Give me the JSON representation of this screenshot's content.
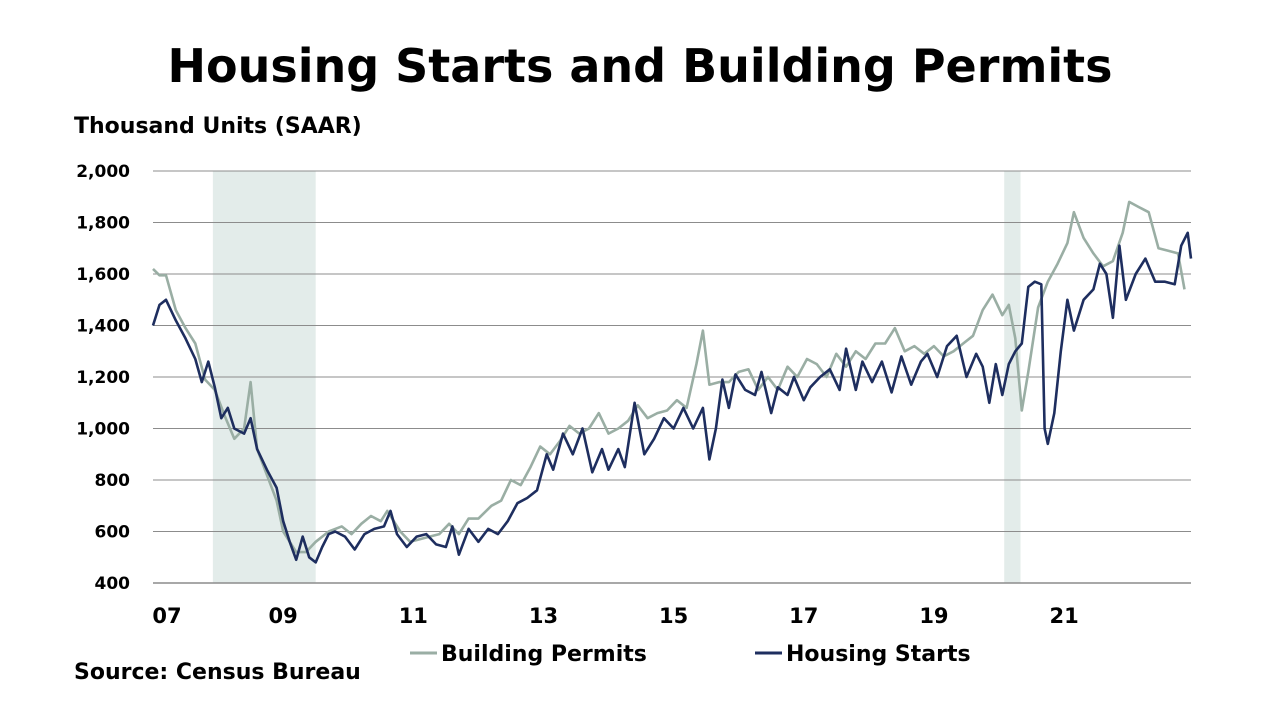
{
  "title": "Housing Starts and Building Permits",
  "ylabel": "Thousand Units (SAAR)",
  "source": "Source: Census Bureau",
  "colors": {
    "building_permits": "#9aaea4",
    "housing_starts": "#1e2e5f",
    "recession_shading": "#e3ecea",
    "grid": "#8c8c8c"
  },
  "chart_data": {
    "type": "line",
    "x_unit": "fractional year",
    "xlim": [
      2007.0,
      2022.95
    ],
    "ylim": [
      400,
      2000
    ],
    "yticks": [
      400,
      600,
      800,
      1000,
      1200,
      1400,
      1600,
      1800,
      2000
    ],
    "ytick_labels": [
      "400",
      "600",
      "800",
      "1,000",
      "1,200",
      "1,400",
      "1,600",
      "1,800",
      "2,000"
    ],
    "xticks": [
      2007,
      2009,
      2011,
      2013,
      2015,
      2017,
      2019,
      2021
    ],
    "xtick_labels": [
      "07",
      "09",
      "11",
      "13",
      "15",
      "17",
      "19",
      "21"
    ],
    "grid": "horizontal",
    "legend_position": "bottom",
    "recession_shading": [
      {
        "start": 2007.92,
        "end": 2009.5
      },
      {
        "start": 2020.08,
        "end": 2020.33
      }
    ],
    "series": [
      {
        "name": "Building Permits",
        "color": "#9aaea4",
        "points": [
          [
            2007.0,
            1620
          ],
          [
            2007.1,
            1595
          ],
          [
            2007.2,
            1595
          ],
          [
            2007.35,
            1460
          ],
          [
            2007.5,
            1390
          ],
          [
            2007.65,
            1330
          ],
          [
            2007.8,
            1190
          ],
          [
            2007.95,
            1150
          ],
          [
            2008.1,
            1050
          ],
          [
            2008.25,
            960
          ],
          [
            2008.4,
            1000
          ],
          [
            2008.5,
            1180
          ],
          [
            2008.6,
            920
          ],
          [
            2008.75,
            820
          ],
          [
            2008.9,
            720
          ],
          [
            2009.0,
            600
          ],
          [
            2009.2,
            520
          ],
          [
            2009.35,
            520
          ],
          [
            2009.5,
            560
          ],
          [
            2009.7,
            600
          ],
          [
            2009.9,
            620
          ],
          [
            2010.05,
            590
          ],
          [
            2010.2,
            630
          ],
          [
            2010.35,
            660
          ],
          [
            2010.5,
            640
          ],
          [
            2010.6,
            680
          ],
          [
            2010.8,
            600
          ],
          [
            2010.95,
            560
          ],
          [
            2011.1,
            570
          ],
          [
            2011.25,
            580
          ],
          [
            2011.4,
            590
          ],
          [
            2011.55,
            630
          ],
          [
            2011.7,
            590
          ],
          [
            2011.85,
            650
          ],
          [
            2012.0,
            650
          ],
          [
            2012.2,
            700
          ],
          [
            2012.35,
            720
          ],
          [
            2012.5,
            800
          ],
          [
            2012.65,
            780
          ],
          [
            2012.8,
            850
          ],
          [
            2012.95,
            930
          ],
          [
            2013.1,
            900
          ],
          [
            2013.25,
            950
          ],
          [
            2013.4,
            1010
          ],
          [
            2013.55,
            980
          ],
          [
            2013.7,
            1000
          ],
          [
            2013.85,
            1060
          ],
          [
            2014.0,
            980
          ],
          [
            2014.15,
            1000
          ],
          [
            2014.3,
            1030
          ],
          [
            2014.45,
            1090
          ],
          [
            2014.6,
            1040
          ],
          [
            2014.75,
            1060
          ],
          [
            2014.9,
            1070
          ],
          [
            2015.05,
            1110
          ],
          [
            2015.2,
            1080
          ],
          [
            2015.35,
            1250
          ],
          [
            2015.45,
            1380
          ],
          [
            2015.55,
            1170
          ],
          [
            2015.7,
            1180
          ],
          [
            2015.85,
            1180
          ],
          [
            2016.0,
            1220
          ],
          [
            2016.15,
            1230
          ],
          [
            2016.3,
            1150
          ],
          [
            2016.45,
            1200
          ],
          [
            2016.6,
            1150
          ],
          [
            2016.75,
            1240
          ],
          [
            2016.9,
            1200
          ],
          [
            2017.05,
            1270
          ],
          [
            2017.2,
            1250
          ],
          [
            2017.35,
            1200
          ],
          [
            2017.5,
            1290
          ],
          [
            2017.65,
            1240
          ],
          [
            2017.8,
            1300
          ],
          [
            2017.95,
            1270
          ],
          [
            2018.1,
            1330
          ],
          [
            2018.25,
            1330
          ],
          [
            2018.4,
            1390
          ],
          [
            2018.55,
            1300
          ],
          [
            2018.7,
            1320
          ],
          [
            2018.85,
            1290
          ],
          [
            2019.0,
            1320
          ],
          [
            2019.15,
            1280
          ],
          [
            2019.3,
            1300
          ],
          [
            2019.45,
            1330
          ],
          [
            2019.6,
            1360
          ],
          [
            2019.75,
            1460
          ],
          [
            2019.9,
            1520
          ],
          [
            2020.05,
            1440
          ],
          [
            2020.15,
            1480
          ],
          [
            2020.25,
            1350
          ],
          [
            2020.35,
            1070
          ],
          [
            2020.45,
            1220
          ],
          [
            2020.6,
            1470
          ],
          [
            2020.75,
            1570
          ],
          [
            2020.9,
            1640
          ],
          [
            2021.05,
            1720
          ],
          [
            2021.15,
            1840
          ],
          [
            2021.3,
            1740
          ],
          [
            2021.45,
            1680
          ],
          [
            2021.6,
            1630
          ],
          [
            2021.75,
            1650
          ],
          [
            2021.9,
            1760
          ],
          [
            2022.0,
            1880
          ],
          [
            2022.15,
            1860
          ],
          [
            2022.3,
            1840
          ],
          [
            2022.45,
            1700
          ],
          [
            2022.6,
            1690
          ],
          [
            2022.75,
            1680
          ],
          [
            2022.85,
            1540
          ]
        ]
      },
      {
        "name": "Housing Starts",
        "color": "#1e2e5f",
        "points": [
          [
            2007.0,
            1400
          ],
          [
            2007.1,
            1480
          ],
          [
            2007.2,
            1500
          ],
          [
            2007.35,
            1420
          ],
          [
            2007.5,
            1350
          ],
          [
            2007.65,
            1270
          ],
          [
            2007.75,
            1180
          ],
          [
            2007.85,
            1260
          ],
          [
            2007.95,
            1160
          ],
          [
            2008.05,
            1040
          ],
          [
            2008.15,
            1080
          ],
          [
            2008.25,
            1000
          ],
          [
            2008.4,
            980
          ],
          [
            2008.5,
            1040
          ],
          [
            2008.6,
            920
          ],
          [
            2008.75,
            840
          ],
          [
            2008.9,
            770
          ],
          [
            2009.0,
            640
          ],
          [
            2009.1,
            560
          ],
          [
            2009.2,
            490
          ],
          [
            2009.3,
            580
          ],
          [
            2009.4,
            500
          ],
          [
            2009.5,
            480
          ],
          [
            2009.6,
            540
          ],
          [
            2009.7,
            590
          ],
          [
            2009.8,
            600
          ],
          [
            2009.95,
            580
          ],
          [
            2010.1,
            530
          ],
          [
            2010.25,
            590
          ],
          [
            2010.4,
            610
          ],
          [
            2010.55,
            620
          ],
          [
            2010.65,
            680
          ],
          [
            2010.75,
            590
          ],
          [
            2010.9,
            540
          ],
          [
            2011.05,
            580
          ],
          [
            2011.2,
            590
          ],
          [
            2011.35,
            550
          ],
          [
            2011.5,
            540
          ],
          [
            2011.6,
            620
          ],
          [
            2011.7,
            510
          ],
          [
            2011.85,
            610
          ],
          [
            2012.0,
            560
          ],
          [
            2012.15,
            610
          ],
          [
            2012.3,
            590
          ],
          [
            2012.45,
            640
          ],
          [
            2012.6,
            710
          ],
          [
            2012.75,
            730
          ],
          [
            2012.9,
            760
          ],
          [
            2013.05,
            900
          ],
          [
            2013.15,
            840
          ],
          [
            2013.3,
            980
          ],
          [
            2013.45,
            900
          ],
          [
            2013.6,
            1000
          ],
          [
            2013.75,
            830
          ],
          [
            2013.9,
            920
          ],
          [
            2014.0,
            840
          ],
          [
            2014.15,
            920
          ],
          [
            2014.25,
            850
          ],
          [
            2014.4,
            1100
          ],
          [
            2014.55,
            900
          ],
          [
            2014.7,
            960
          ],
          [
            2014.85,
            1040
          ],
          [
            2015.0,
            1000
          ],
          [
            2015.15,
            1080
          ],
          [
            2015.3,
            1000
          ],
          [
            2015.45,
            1080
          ],
          [
            2015.55,
            880
          ],
          [
            2015.65,
            1000
          ],
          [
            2015.75,
            1190
          ],
          [
            2015.85,
            1080
          ],
          [
            2015.95,
            1210
          ],
          [
            2016.1,
            1150
          ],
          [
            2016.25,
            1130
          ],
          [
            2016.35,
            1220
          ],
          [
            2016.5,
            1060
          ],
          [
            2016.6,
            1160
          ],
          [
            2016.75,
            1130
          ],
          [
            2016.85,
            1200
          ],
          [
            2017.0,
            1110
          ],
          [
            2017.1,
            1160
          ],
          [
            2017.25,
            1200
          ],
          [
            2017.4,
            1230
          ],
          [
            2017.55,
            1150
          ],
          [
            2017.65,
            1310
          ],
          [
            2017.8,
            1150
          ],
          [
            2017.9,
            1260
          ],
          [
            2018.05,
            1180
          ],
          [
            2018.2,
            1260
          ],
          [
            2018.35,
            1140
          ],
          [
            2018.5,
            1280
          ],
          [
            2018.65,
            1170
          ],
          [
            2018.8,
            1260
          ],
          [
            2018.9,
            1290
          ],
          [
            2019.05,
            1200
          ],
          [
            2019.2,
            1320
          ],
          [
            2019.35,
            1360
          ],
          [
            2019.5,
            1200
          ],
          [
            2019.65,
            1290
          ],
          [
            2019.75,
            1240
          ],
          [
            2019.85,
            1100
          ],
          [
            2019.95,
            1250
          ],
          [
            2020.05,
            1130
          ],
          [
            2020.15,
            1250
          ],
          [
            2020.25,
            1300
          ],
          [
            2020.35,
            1330
          ],
          [
            2020.45,
            1550
          ],
          [
            2020.55,
            1570
          ],
          [
            2020.65,
            1560
          ],
          [
            2020.7,
            1000
          ],
          [
            2020.75,
            940
          ],
          [
            2020.85,
            1060
          ],
          [
            2020.95,
            1300
          ],
          [
            2021.05,
            1500
          ],
          [
            2021.15,
            1380
          ],
          [
            2021.3,
            1500
          ],
          [
            2021.45,
            1540
          ],
          [
            2021.55,
            1640
          ],
          [
            2021.65,
            1600
          ],
          [
            2021.75,
            1430
          ],
          [
            2021.85,
            1710
          ],
          [
            2021.95,
            1500
          ],
          [
            2022.1,
            1600
          ],
          [
            2022.25,
            1660
          ],
          [
            2022.4,
            1570
          ],
          [
            2022.55,
            1570
          ],
          [
            2022.7,
            1560
          ],
          [
            2022.8,
            1710
          ],
          [
            2022.9,
            1760
          ],
          [
            2022.95,
            1660
          ]
        ]
      }
    ]
  }
}
